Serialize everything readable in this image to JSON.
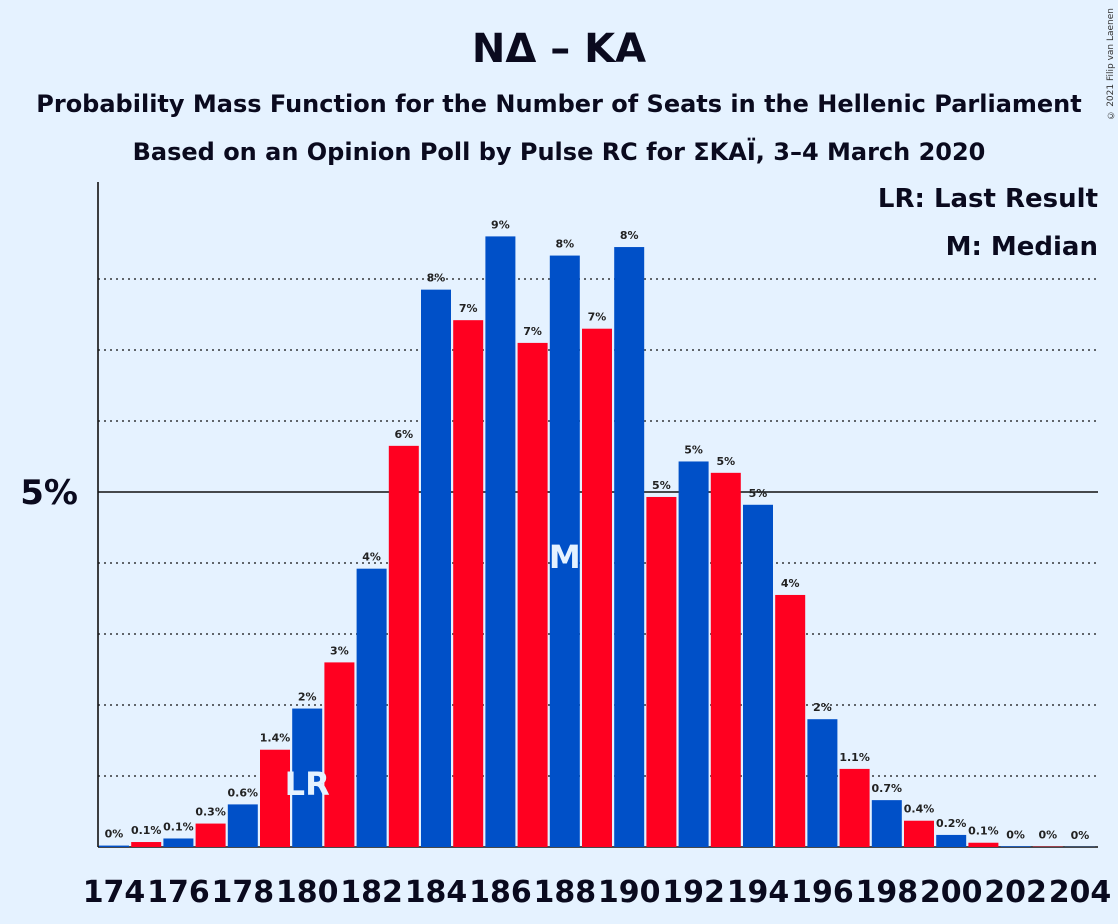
{
  "chart_data": {
    "type": "bar",
    "title": "ΝΔ – ΚΑ",
    "subtitle_line1": "Probability Mass Function for the Number of Seats in the Hellenic Parliament",
    "subtitle_line2": "Based on an Opinion Poll by Pulse RC for ΣΚΑΪ, 3–4 March 2020",
    "copyright": "© 2021 Filip van Laenen",
    "legend": [
      "LR: Last Result",
      "M: Median"
    ],
    "ylabel": "",
    "ytick_label": "5%",
    "ytick_value": 5,
    "ylim": [
      0,
      9.4
    ],
    "x_ticks": [
      174,
      176,
      178,
      180,
      182,
      184,
      186,
      188,
      190,
      192,
      194,
      196,
      198,
      200,
      202,
      204
    ],
    "x": [
      174,
      175,
      176,
      177,
      178,
      179,
      180,
      181,
      182,
      183,
      184,
      185,
      186,
      187,
      188,
      189,
      190,
      191,
      192,
      193,
      194,
      195,
      196,
      197,
      198,
      199,
      200,
      201,
      202,
      203,
      204
    ],
    "values": [
      0.02,
      0.07,
      0.12,
      0.33,
      0.6,
      1.37,
      1.95,
      2.6,
      3.92,
      5.65,
      7.85,
      7.42,
      8.6,
      7.1,
      8.33,
      7.3,
      8.45,
      4.93,
      5.43,
      5.27,
      4.82,
      3.55,
      1.8,
      1.1,
      0.66,
      0.37,
      0.17,
      0.06,
      0.01,
      0.005,
      0.003
    ],
    "labels": [
      "0%",
      "0.1%",
      "0.1%",
      "0.3%",
      "0.6%",
      "1.4%",
      "2%",
      "3%",
      "4%",
      "6%",
      "8%",
      "7%",
      "9%",
      "7%",
      "8%",
      "7%",
      "8%",
      "5%",
      "5%",
      "5%",
      "5%",
      "4%",
      "2%",
      "1.1%",
      "0.7%",
      "0.4%",
      "0.2%",
      "0.1%",
      "0%",
      "0%",
      "0%"
    ],
    "colors": {
      "even": "#0050c8",
      "odd": "#ff0020"
    },
    "last_result": {
      "x": 180,
      "label": "LR"
    },
    "median": {
      "x": 188,
      "label": "M"
    }
  }
}
